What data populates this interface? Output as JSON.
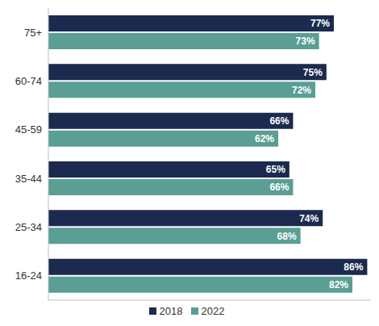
{
  "chart_data": {
    "type": "bar",
    "orientation": "horizontal",
    "categories": [
      "75+",
      "60-74",
      "45-59",
      "35-44",
      "25-34",
      "16-24"
    ],
    "series": [
      {
        "name": "2018",
        "color": "#1b2a4e",
        "values": [
          77,
          75,
          66,
          65,
          74,
          86
        ],
        "value_labels": [
          "77%",
          "75%",
          "66%",
          "65%",
          "74%",
          "86%"
        ]
      },
      {
        "name": "2022",
        "color": "#5a9e94",
        "values": [
          73,
          72,
          62,
          66,
          68,
          82
        ],
        "value_labels": [
          "73%",
          "72%",
          "62%",
          "66%",
          "68%",
          "82%"
        ]
      }
    ],
    "xlim": [
      0,
      87
    ],
    "data_labels": true,
    "tick_labels": "y",
    "legend": "bottom"
  }
}
